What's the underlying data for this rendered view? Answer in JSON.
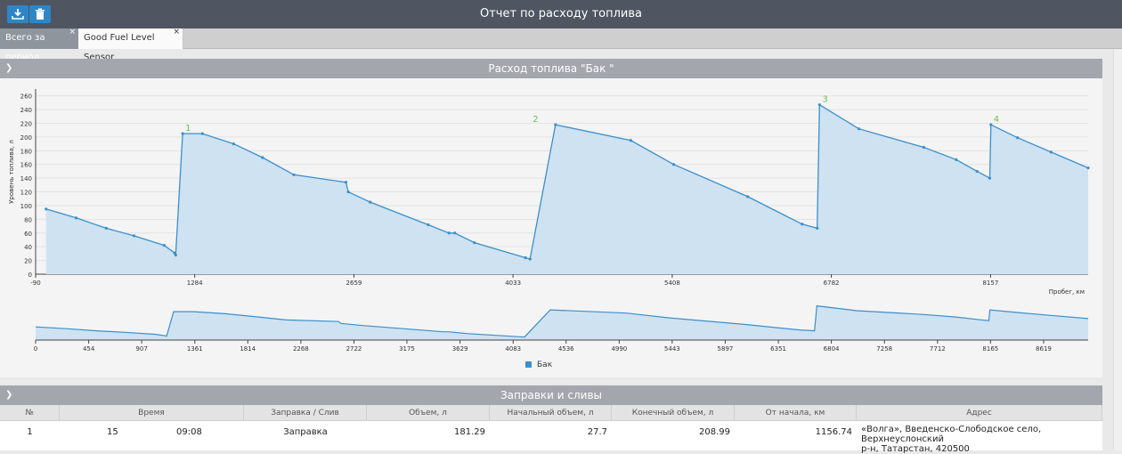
{
  "window": {
    "title": "Отчет по расходу топлива"
  },
  "toolbar": {
    "download_icon": "download-icon",
    "delete_icon": "trash-icon"
  },
  "tabs": [
    {
      "label": "Всего за период",
      "close": "×"
    },
    {
      "label": "Good Fuel Level Sensor",
      "close": "×"
    }
  ],
  "fuel_section": {
    "title": "Расход топлива \"Бак \""
  },
  "events_section": {
    "title": "Заправки и сливы"
  },
  "legend": {
    "label": "Бак"
  },
  "colors": {
    "accent": "#2e86c6",
    "series": "#3b8fcc",
    "fill": "#cfe2f1",
    "marker": "#6bbf4e",
    "header": "#4f5661"
  },
  "chart_data": [
    {
      "type": "area",
      "ylabel": "Уровень топлива, л",
      "xlabel": "Пробег, км",
      "xlim": [
        -90,
        9000
      ],
      "ylim": [
        0,
        270
      ],
      "x_ticks": [
        "-90",
        "1284",
        "2659",
        "4033",
        "5408",
        "6782",
        "8157"
      ],
      "y_ticks": [
        "0",
        "20",
        "40",
        "60",
        "80",
        "100",
        "120",
        "140",
        "160",
        "180",
        "200",
        "220",
        "240",
        "260"
      ],
      "grid": true,
      "series": [
        {
          "name": "Бак",
          "x": [
            0,
            260,
            520,
            760,
            1020,
            1110,
            1120,
            1180,
            1350,
            1620,
            1870,
            2140,
            2590,
            2610,
            2800,
            3300,
            3480,
            3530,
            3700,
            4140,
            4180,
            4400,
            5050,
            5420,
            6060,
            6530,
            6660,
            6680,
            7020,
            7580,
            7860,
            8040,
            8150,
            8160,
            8390,
            8680,
            9000
          ],
          "y": [
            95,
            82,
            67,
            56,
            42,
            31,
            28,
            205,
            205,
            190,
            170,
            145,
            134,
            120,
            105,
            72,
            60,
            60,
            46,
            24,
            22,
            218,
            195,
            160,
            113,
            73,
            67,
            247,
            212,
            185,
            167,
            150,
            140,
            218,
            199,
            178,
            155
          ]
        }
      ],
      "annotations": [
        {
          "label": "1",
          "x": 1180,
          "y": 205
        },
        {
          "label": "2",
          "x": 4180,
          "y": 218
        },
        {
          "label": "3",
          "x": 6680,
          "y": 247
        },
        {
          "label": "4",
          "x": 8160,
          "y": 218
        }
      ]
    },
    {
      "type": "area",
      "xlim": [
        0,
        9000
      ],
      "x_ticks": [
        "0",
        "454",
        "907",
        "1361",
        "1814",
        "2268",
        "2722",
        "3175",
        "3629",
        "4083",
        "4536",
        "4990",
        "5443",
        "5897",
        "6351",
        "6804",
        "7258",
        "7712",
        "8165",
        "8619"
      ],
      "series_ref": "Бак"
    }
  ],
  "table": {
    "columns": [
      "№",
      "Время",
      "Заправка / Слив",
      "Объем, л",
      "Начальный объем, л",
      "Конечный объем, л",
      "От начала, км",
      "Адрес"
    ],
    "rows": [
      {
        "n": "1",
        "time_day": "15",
        "time_clock": "09:08",
        "kind": "Заправка",
        "volume": "181.29",
        "start": "27.7",
        "end": "208.99",
        "from_start": "1156.74",
        "address_l1": "«Волга», Введенско-Слободское село, Верхнеуслонский",
        "address_l2": "р-н, Татарстан, 420500"
      }
    ]
  }
}
